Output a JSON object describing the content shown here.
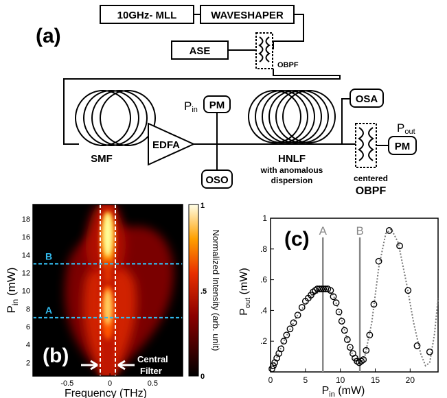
{
  "panel_a": {
    "label": "(a)",
    "mll": "10GHz- MLL",
    "waveshaper": "WAVESHAPER",
    "ase": "ASE",
    "obpf_small": "OBPF",
    "smf": "SMF",
    "edfa": "EDFA",
    "pin_letter": "P",
    "pin_sub": "in",
    "pm": "PM",
    "oso": "OSO",
    "hnlf": "HNLF",
    "hnlf_note1": "with anomalous",
    "hnlf_note2": "dispersion",
    "osa": "OSA",
    "pout_letter": "P",
    "pout_sub": "out",
    "centered": "centered",
    "obpf_big": "OBPF"
  },
  "panel_b": {
    "label": "(b)",
    "ylabel_letter": "P",
    "ylabel_sub": "in",
    "ylabel_unit": "(mW)",
    "xlabel": "Frequency (THz)",
    "yticks": [
      "2",
      "4",
      "6",
      "8",
      "10",
      "12",
      "14",
      "16",
      "18"
    ],
    "xticks": [
      "-0.5",
      "0",
      "0.5"
    ],
    "line_A": "A",
    "line_B": "B",
    "line_A_value": 7,
    "line_B_value": 13,
    "filter_label_1": "Central",
    "filter_label_2": "Filter",
    "colorbar_label": "Normalized Intensity (arb. unit)",
    "colorbar_ticks": [
      "1",
      ".5",
      "0"
    ],
    "line_color": "#33bbee"
  },
  "chart_data": {
    "type": "scatter",
    "label": "(c)",
    "xlabel_letter": "P",
    "xlabel_sub": "in",
    "xlabel_unit": "(mW)",
    "ylabel_letter": "P",
    "ylabel_sub": "out",
    "ylabel_unit": "(mW)",
    "xlim": [
      0,
      24
    ],
    "ylim": [
      0,
      1.0
    ],
    "xticks": [
      "0",
      "5",
      "10",
      "15",
      "20"
    ],
    "yticks": [
      ".2",
      ".4",
      ".6",
      ".8",
      "1"
    ],
    "marker_A": "A",
    "marker_B": "B",
    "marker_A_x": 7.5,
    "marker_B_x": 12.8,
    "points": [
      [
        0.2,
        0.02
      ],
      [
        0.4,
        0.04
      ],
      [
        0.6,
        0.06
      ],
      [
        0.9,
        0.09
      ],
      [
        1.2,
        0.12
      ],
      [
        1.5,
        0.15
      ],
      [
        1.9,
        0.2
      ],
      [
        2.3,
        0.24
      ],
      [
        2.8,
        0.28
      ],
      [
        3.3,
        0.32
      ],
      [
        3.9,
        0.37
      ],
      [
        4.5,
        0.42
      ],
      [
        5.0,
        0.46
      ],
      [
        5.4,
        0.48
      ],
      [
        5.8,
        0.5
      ],
      [
        6.1,
        0.52
      ],
      [
        6.4,
        0.53
      ],
      [
        6.7,
        0.54
      ],
      [
        7.0,
        0.54
      ],
      [
        7.3,
        0.54
      ],
      [
        7.6,
        0.54
      ],
      [
        7.9,
        0.54
      ],
      [
        8.2,
        0.54
      ],
      [
        8.6,
        0.53
      ],
      [
        9.0,
        0.49
      ],
      [
        9.4,
        0.45
      ],
      [
        9.8,
        0.39
      ],
      [
        10.2,
        0.33
      ],
      [
        10.6,
        0.27
      ],
      [
        11.0,
        0.21
      ],
      [
        11.4,
        0.16
      ],
      [
        11.8,
        0.12
      ],
      [
        12.1,
        0.09
      ],
      [
        12.4,
        0.07
      ],
      [
        12.7,
        0.06
      ],
      [
        13.0,
        0.07
      ],
      [
        13.3,
        0.08
      ],
      [
        13.7,
        0.14
      ],
      [
        14.2,
        0.24
      ],
      [
        14.8,
        0.44
      ],
      [
        15.5,
        0.72
      ],
      [
        17.0,
        0.92
      ],
      [
        18.5,
        0.82
      ],
      [
        19.7,
        0.53
      ],
      [
        21.0,
        0.17
      ],
      [
        22.8,
        0.13
      ]
    ],
    "curve": [
      [
        0,
        0
      ],
      [
        2,
        0.21
      ],
      [
        4,
        0.38
      ],
      [
        6,
        0.5
      ],
      [
        8,
        0.54
      ],
      [
        9,
        0.5
      ],
      [
        10,
        0.37
      ],
      [
        11,
        0.21
      ],
      [
        12,
        0.08
      ],
      [
        12.8,
        0.05
      ],
      [
        13.5,
        0.1
      ],
      [
        14.5,
        0.32
      ],
      [
        15.5,
        0.68
      ],
      [
        16.5,
        0.9
      ],
      [
        17.3,
        0.93
      ],
      [
        18.3,
        0.84
      ],
      [
        19.5,
        0.57
      ],
      [
        20.5,
        0.32
      ],
      [
        21.5,
        0.12
      ],
      [
        22.2,
        0.04
      ],
      [
        22.8,
        0.06
      ],
      [
        23.5,
        0.25
      ],
      [
        24,
        0.48
      ]
    ]
  }
}
